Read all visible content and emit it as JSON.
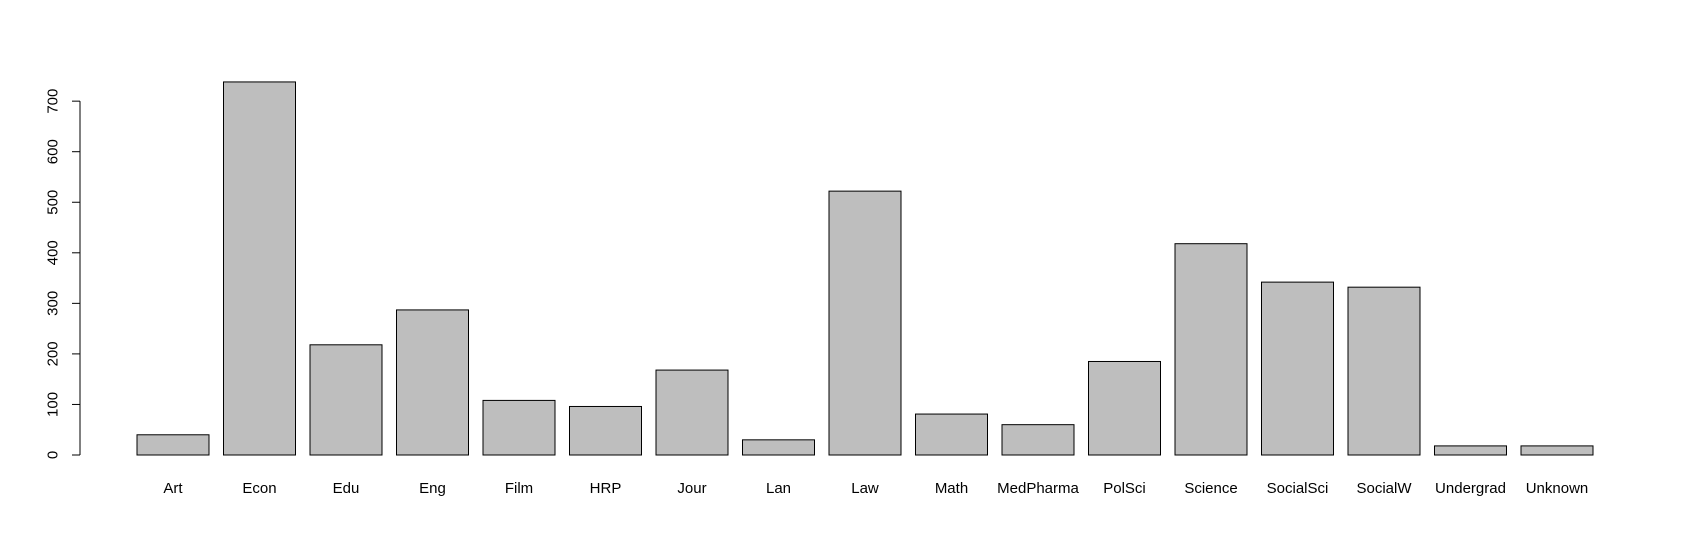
{
  "chart_data": {
    "type": "bar",
    "title": "",
    "xlabel": "",
    "ylabel": "",
    "categories": [
      "Art",
      "Econ",
      "Edu",
      "Eng",
      "Film",
      "HRP",
      "Jour",
      "Lan",
      "Law",
      "Math",
      "MedPharma",
      "PolSci",
      "Science",
      "SocialSci",
      "SocialW",
      "Undergrad",
      "Unknown"
    ],
    "values": [
      40,
      738,
      218,
      287,
      108,
      96,
      168,
      30,
      522,
      81,
      60,
      185,
      418,
      342,
      332,
      18,
      18
    ],
    "ylim": [
      0,
      738
    ],
    "yticks": [
      0,
      100,
      200,
      300,
      400,
      500,
      600,
      700
    ],
    "grid": false,
    "legend": "none",
    "bar_color": "#bebebe",
    "edge_color": "#000000"
  }
}
